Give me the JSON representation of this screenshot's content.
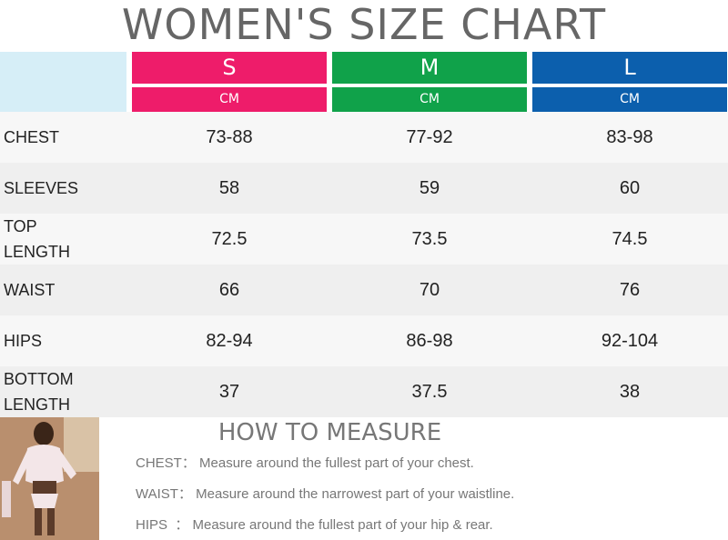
{
  "title": "WOMEN'S SIZE CHART",
  "colors": {
    "s": "#ee1c6a",
    "m": "#10a24a",
    "l": "#0c5fad",
    "corner": "#d6eef7"
  },
  "sizes": [
    {
      "label": "S",
      "unit": "CM"
    },
    {
      "label": "M",
      "unit": "CM"
    },
    {
      "label": "L",
      "unit": "CM"
    }
  ],
  "rows": [
    {
      "label": "CHEST",
      "values": [
        "73-88",
        "77-92",
        "83-98"
      ]
    },
    {
      "label": "SLEEVES",
      "values": [
        "58",
        "59",
        "60"
      ]
    },
    {
      "label": "TOP LENGTH",
      "values": [
        "72.5",
        "73.5",
        "74.5"
      ]
    },
    {
      "label": "WAIST",
      "values": [
        "66",
        "70",
        "76"
      ]
    },
    {
      "label": "HIPS",
      "values": [
        "82-94",
        "86-98",
        "92-104"
      ]
    },
    {
      "label": "BOTTOM LENGTH",
      "values": [
        "37",
        "37.5",
        "38"
      ]
    }
  ],
  "measure": {
    "title": "HOW TO MEASURE",
    "lines": [
      {
        "key": "CHEST：",
        "text": "Measure around the fullest part of your chest."
      },
      {
        "key": "WAIST：",
        "text": "Measure around the narrowest part of your waistline."
      },
      {
        "key": "HIPS  ：",
        "text": "Measure around the fullest part of your hip & rear."
      }
    ]
  }
}
